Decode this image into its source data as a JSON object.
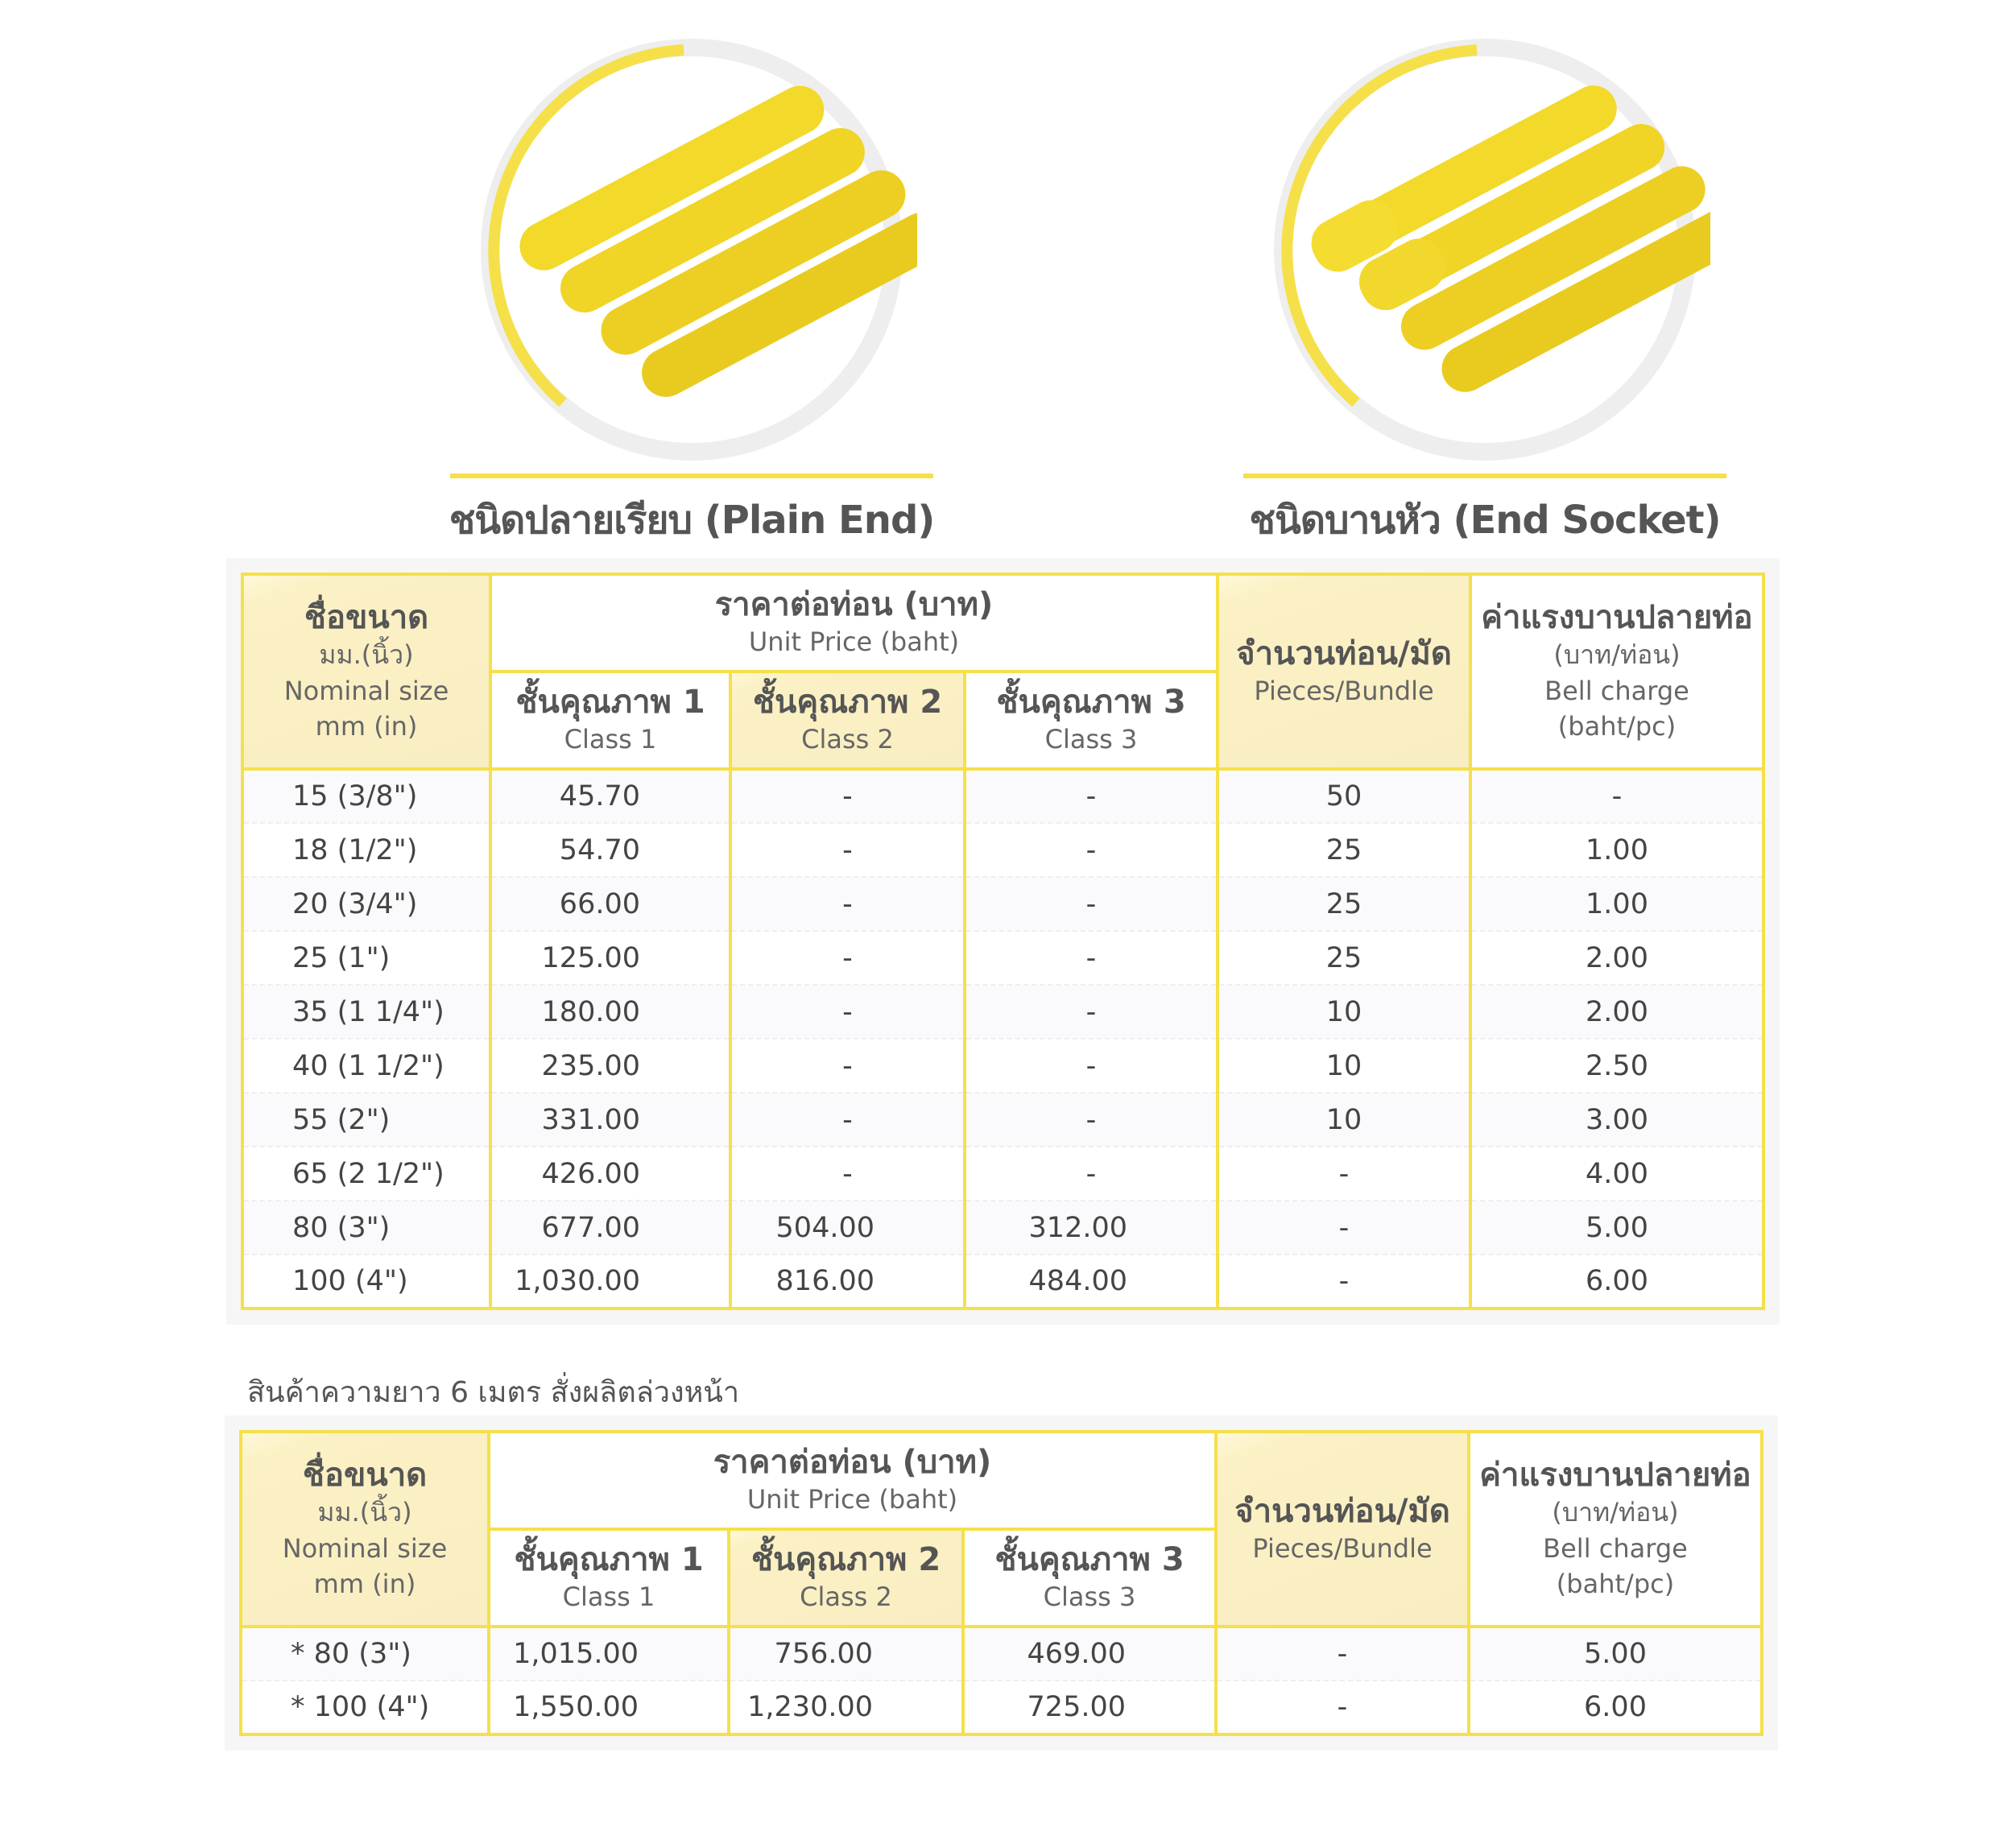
{
  "products": [
    {
      "title": "ชนิดปลายเรียบ (Plain End)",
      "icon": "plain-end-pipes-image"
    },
    {
      "title": "ชนิดบานหัว (End Socket)",
      "icon": "end-socket-pipes-image"
    }
  ],
  "colors": {
    "accent": "#f5e04a",
    "header_shade": "#f8eec2"
  },
  "headers": {
    "size": {
      "th": "ชื่อขนาด",
      "th2": "มม.(นิ้ว)",
      "en": "Nominal size",
      "en2": "mm (in)"
    },
    "price": {
      "th": "ราคาต่อท่อน (บาท)",
      "en": "Unit Price (baht)"
    },
    "class1": {
      "th": "ชั้นคุณภาพ 1",
      "en": "Class 1"
    },
    "class2": {
      "th": "ชั้นคุณภาพ 2",
      "en": "Class 2"
    },
    "class3": {
      "th": "ชั้นคุณภาพ 3",
      "en": "Class 3"
    },
    "bundle": {
      "th": "จำนวนท่อน/มัด",
      "en": "Pieces/Bundle"
    },
    "bell": {
      "th": "ค่าแรงบานปลายท่อ",
      "th2": "(บาท/ท่อน)",
      "en": "Bell charge",
      "en2": "(baht/pc)"
    }
  },
  "table1": [
    [
      "15 (3/8\")",
      "45.70",
      "-",
      "-",
      "50",
      "-"
    ],
    [
      "18 (1/2\")",
      "54.70",
      "-",
      "-",
      "25",
      "1.00"
    ],
    [
      "20 (3/4\")",
      "66.00",
      "-",
      "-",
      "25",
      "1.00"
    ],
    [
      "25 (1\")",
      "125.00",
      "-",
      "-",
      "25",
      "2.00"
    ],
    [
      "35 (1 1/4\")",
      "180.00",
      "-",
      "-",
      "10",
      "2.00"
    ],
    [
      "40 (1 1/2\")",
      "235.00",
      "-",
      "-",
      "10",
      "2.50"
    ],
    [
      "55 (2\")",
      "331.00",
      "-",
      "-",
      "10",
      "3.00"
    ],
    [
      "65 (2 1/2\")",
      "426.00",
      "-",
      "-",
      "-",
      "4.00"
    ],
    [
      "80 (3\")",
      "677.00",
      "504.00",
      "312.00",
      "-",
      "5.00"
    ],
    [
      "100 (4\")",
      "1,030.00",
      "816.00",
      "484.00",
      "-",
      "6.00"
    ]
  ],
  "note": "สินค้าความยาว 6 เมตร สั่งผลิตล่วงหน้า",
  "table2": [
    [
      "* 80 (3\")",
      "1,015.00",
      "756.00",
      "469.00",
      "-",
      "5.00"
    ],
    [
      "* 100 (4\")",
      "1,550.00",
      "1,230.00",
      "725.00",
      "-",
      "6.00"
    ]
  ]
}
